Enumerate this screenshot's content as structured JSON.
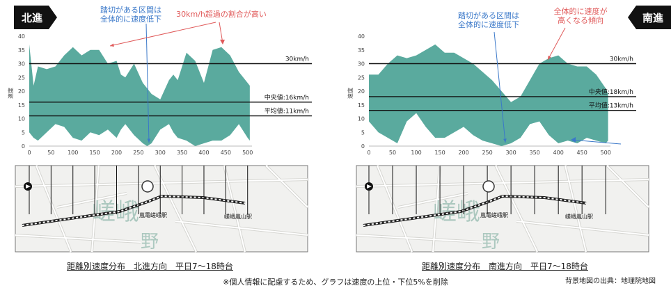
{
  "panels": [
    {
      "direction": "北進",
      "arrow": "left",
      "caption": "距離別速度分布　北進方向　平日7～18時台",
      "annotations": [
        {
          "text_lines": [
            "踏切がある区間は",
            "全体的に速度低下"
          ],
          "color": "#3a78c9"
        },
        {
          "text_lines": [
            "30km/h超過の割合が高い"
          ],
          "color": "#e05a5a"
        }
      ],
      "chart_data": {
        "type": "area",
        "ylabel": "速度",
        "ylim": [
          0,
          40
        ],
        "yticks": [
          0,
          5,
          10,
          15,
          20,
          25,
          30,
          35,
          40
        ],
        "xlim": [
          0,
          510
        ],
        "xticks": [
          0,
          50,
          100,
          150,
          200,
          250,
          300,
          350,
          400,
          450,
          500
        ],
        "reference_lines": [
          {
            "value": 30,
            "label": "30km/h"
          },
          {
            "value": 16,
            "label": "中央値:16km/h"
          },
          {
            "value": 11,
            "label": "平均値:11km/h"
          }
        ],
        "x": [
          0,
          10,
          20,
          40,
          60,
          80,
          100,
          120,
          140,
          160,
          180,
          200,
          210,
          220,
          240,
          260,
          270,
          280,
          300,
          320,
          330,
          340,
          360,
          380,
          400,
          420,
          440,
          460,
          480,
          500,
          505
        ],
        "upper": [
          37,
          22,
          29,
          28,
          29,
          33,
          36,
          33,
          35,
          35,
          30,
          31,
          26,
          25,
          30,
          23,
          21,
          19,
          17,
          24,
          26,
          24,
          34,
          31,
          23,
          35,
          36,
          33,
          27,
          23,
          22
        ],
        "lower": [
          5,
          3,
          2,
          5,
          8,
          7,
          3,
          2,
          5,
          4,
          6,
          3,
          6,
          8,
          4,
          1,
          0,
          1,
          6,
          8,
          5,
          3,
          2,
          0,
          1,
          2,
          2,
          4,
          8,
          3,
          2
        ],
        "color": "#5aaa9e"
      },
      "map": {
        "station_a": "嵐電嵯峨駅",
        "station_b": "嵯峨嵐山駅",
        "big_text": "嵯峨野"
      }
    },
    {
      "direction": "南進",
      "arrow": "right",
      "caption": "距離別速度分布　南進方向　平日7～18時台",
      "annotations": [
        {
          "text_lines": [
            "踏切がある区間は",
            "全体的に速度低下"
          ],
          "color": "#3a78c9"
        },
        {
          "text_lines": [
            "全体的に速度が",
            "高くなる傾向"
          ],
          "color": "#e05a5a"
        }
      ],
      "chart_data": {
        "type": "area",
        "ylabel": "速度",
        "ylim": [
          0,
          40
        ],
        "yticks": [
          0,
          5,
          10,
          15,
          20,
          25,
          30,
          35,
          40
        ],
        "xlim": [
          0,
          510
        ],
        "xticks": [
          0,
          50,
          100,
          150,
          200,
          250,
          300,
          350,
          400,
          450,
          500
        ],
        "reference_lines": [
          {
            "value": 30,
            "label": "30km/h"
          },
          {
            "value": 18,
            "label": "中央値:18km/h"
          },
          {
            "value": 13,
            "label": "平均値:13km/h"
          }
        ],
        "x": [
          0,
          20,
          40,
          60,
          80,
          100,
          120,
          140,
          160,
          180,
          200,
          220,
          240,
          260,
          280,
          300,
          320,
          340,
          360,
          380,
          400,
          420,
          440,
          460,
          480,
          500,
          505
        ],
        "upper": [
          26,
          26,
          30,
          33,
          32,
          33,
          35,
          37,
          34,
          34,
          32,
          30,
          27,
          24,
          20,
          16,
          18,
          24,
          30,
          32,
          33,
          30,
          29,
          29,
          26,
          21,
          19
        ],
        "lower": [
          9,
          5,
          3,
          1,
          9,
          12,
          7,
          3,
          3,
          5,
          7,
          4,
          2,
          1,
          0,
          1,
          3,
          8,
          9,
          4,
          1,
          2,
          1,
          3,
          2,
          1,
          2
        ],
        "color": "#5aaa9e"
      },
      "map": {
        "station_a": "嵐電嵯峨駅",
        "station_b": "嵯峨嵐山駅",
        "big_text": "嵯峨野"
      }
    }
  ],
  "note": "※個人情報に配慮するため、グラフは速度の上位・下位5%を削除",
  "credit": "背景地図の出典：地理院地図"
}
